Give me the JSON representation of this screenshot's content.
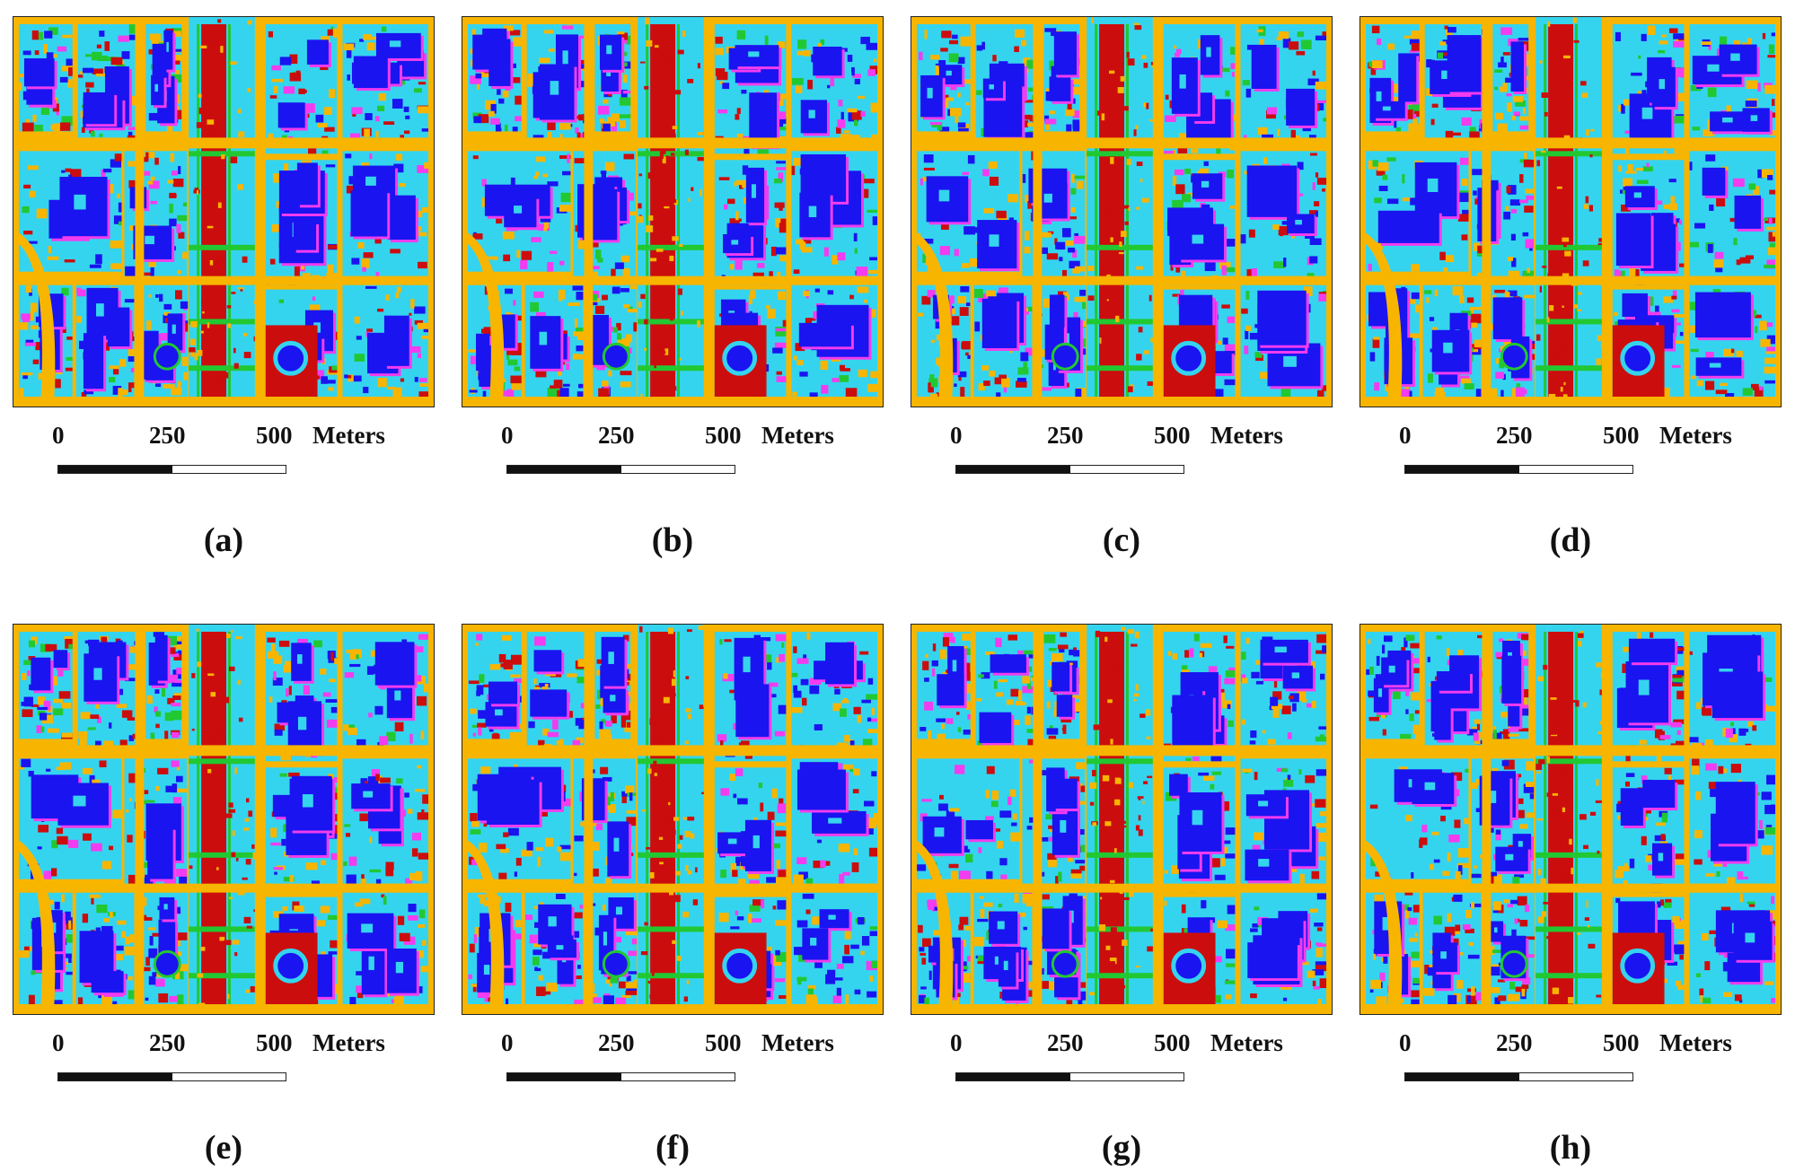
{
  "colors": {
    "road": "#f7b500",
    "building": "#1a14f0",
    "vegetation": "#35d4ee",
    "bare": "#cc0d0d",
    "grass": "#22c832",
    "shadow": "#f23cef"
  },
  "scale": {
    "tick0": "0",
    "tick1": "250",
    "tick2": "500",
    "unit": "Meters"
  },
  "panels": [
    {
      "caption": "(a)"
    },
    {
      "caption": "(b)"
    },
    {
      "caption": "(c)"
    },
    {
      "caption": "(d)"
    },
    {
      "caption": "(e)"
    },
    {
      "caption": "(f)"
    },
    {
      "caption": "(g)"
    },
    {
      "caption": "(h)"
    }
  ]
}
